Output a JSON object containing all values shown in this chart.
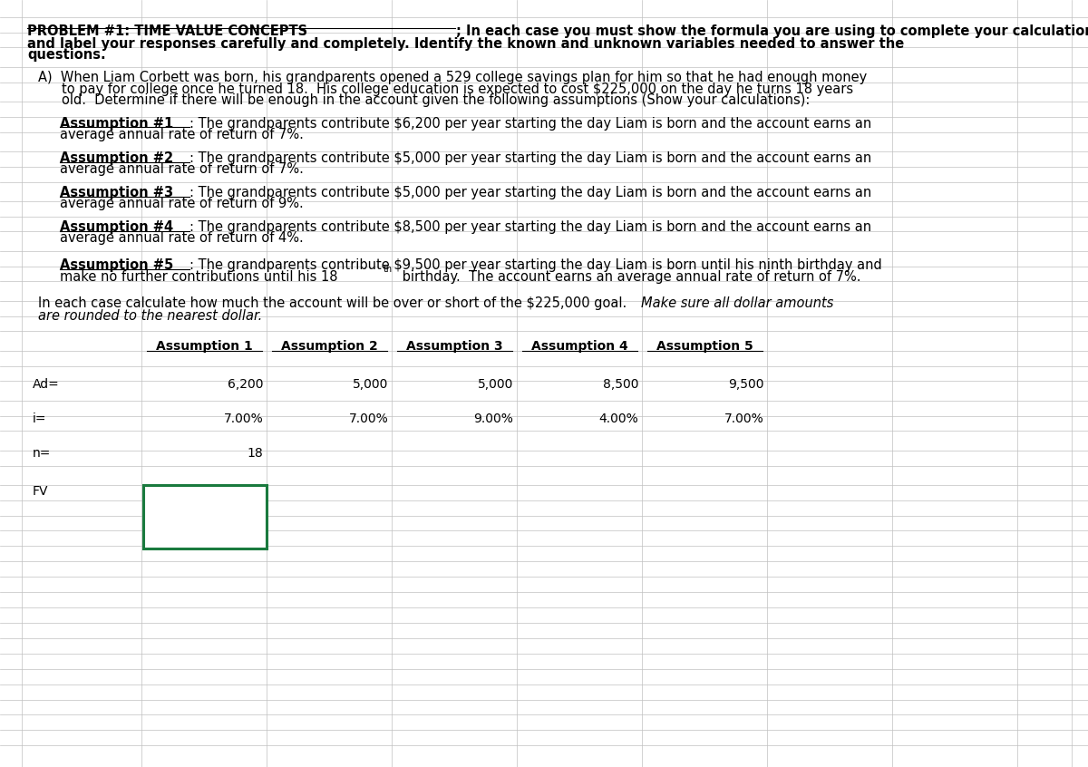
{
  "bg_color": "#ffffff",
  "grid_line_color": "#c0c0c0",
  "header_bold": "PROBLEM #1: TIME VALUE CONCEPTS",
  "header_rest_line1": "; In each case you must show the formula you are using to complete your calculations,",
  "header_line2": "and label your responses carefully and completely. Identify the known and unknown variables needed to answer the",
  "header_line3": "questions.",
  "section_a_line1": "A)  When Liam Corbett was born, his grandparents opened a 529 college savings plan for him so that he had enough money",
  "section_a_line2": "to pay for college once he turned 18.  His college education is expected to cost $225,000 on the day he turns 18 years",
  "section_a_line3": "old.  Determine if there will be enough in the account given the following assumptions (Show your calculations):",
  "assumption1_label": "Assumption #1",
  "assumption1_rest": ": The grandparents contribute $6,200 per year starting the day Liam is born and the account earns an",
  "assumption1_line2": "average annual rate of return of 7%.",
  "assumption2_label": "Assumption #2",
  "assumption2_rest": ": The grandparents contribute $5,000 per year starting the day Liam is born and the account earns an",
  "assumption2_line2": "average annual rate of return of 7%.",
  "assumption3_label": "Assumption #3",
  "assumption3_rest": ": The grandparents contribute $5,000 per year starting the day Liam is born and the account earns an",
  "assumption3_line2": "average annual rate of return of 9%.",
  "assumption4_label": "Assumption #4",
  "assumption4_rest": ": The grandparents contribute $8,500 per year starting the day Liam is born and the account earns an",
  "assumption4_line2": "average annual rate of return of 4%.",
  "assumption5_label": "Assumption #5",
  "assumption5_rest": ": The grandparents contribute $9,500 per year starting the day Liam is born until his ninth birthday and",
  "assumption5_line2a": "make no further contributions until his 18",
  "assumption5_th": "th",
  "assumption5_line2b": " birthday.  The account earns an average annual rate of return of 7%.",
  "last_para_normal": "In each case calculate how much the account will be over or short of the $225,000 goal.  ",
  "last_para_italic": "Make sure all dollar amounts",
  "last_para_line2": "are rounded to the nearest dollar.",
  "col_headers": [
    "Assumption 1",
    "Assumption 2",
    "Assumption 3",
    "Assumption 4",
    "Assumption 5"
  ],
  "row_labels": [
    "Ad=",
    "i=",
    "n=",
    "FV"
  ],
  "ad_values": [
    "6,200",
    "5,000",
    "5,000",
    "8,500",
    "9,500"
  ],
  "i_values": [
    "7.00%",
    "7.00%",
    "9.00%",
    "4.00%",
    "7.00%"
  ],
  "n_value": "18",
  "font_size_body": 10.5,
  "font_size_table": 10.0,
  "text_color": "#000000",
  "highlight_box_color": "#1a7a3e"
}
